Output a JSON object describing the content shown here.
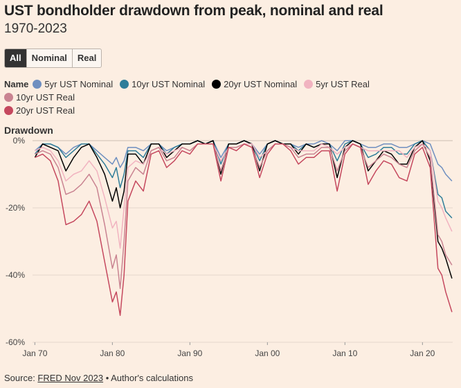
{
  "title": "UST bondholder drawdown from peak, nominal and real",
  "subtitle": "1970-2023",
  "filters": [
    {
      "label": "All",
      "active": true
    },
    {
      "label": "Nominal",
      "active": false
    },
    {
      "label": "Real",
      "active": false
    }
  ],
  "legend_title": "Name",
  "source": {
    "prefix": "Source: ",
    "link": "FRED Nov 2023",
    "suffix": " • Author's calculations"
  },
  "chart_data": {
    "type": "line",
    "ylabel": "Drawdown",
    "ylim": [
      -60,
      0
    ],
    "xlim": [
      1969.7,
      2023.9
    ],
    "y_ticks": [
      {
        "value": 0,
        "label": "0%"
      },
      {
        "value": -20,
        "label": "-20%"
      },
      {
        "value": -40,
        "label": "-40%"
      },
      {
        "value": -60,
        "label": "-60%"
      }
    ],
    "x_ticks": [
      {
        "value": 1970,
        "label": "Jan 70"
      },
      {
        "value": 1980,
        "label": "Jan 80"
      },
      {
        "value": 1990,
        "label": "Jan 90"
      },
      {
        "value": 2000,
        "label": "Jan 00"
      },
      {
        "value": 2010,
        "label": "Jan 10"
      },
      {
        "value": 2020,
        "label": "Jan 20"
      }
    ],
    "x": [
      1970,
      1971,
      1972,
      1973,
      1974,
      1975,
      1976,
      1977,
      1978,
      1979,
      1980,
      1980.5,
      1981,
      1981.5,
      1982,
      1983,
      1984,
      1985,
      1986,
      1987,
      1988,
      1989,
      1990,
      1991,
      1992,
      1993,
      1994,
      1995,
      1996,
      1997,
      1998,
      1999,
      2000,
      2001,
      2002,
      2003,
      2004,
      2005,
      2006,
      2007,
      2008,
      2009,
      2010,
      2011,
      2012,
      2013,
      2014,
      2015,
      2016,
      2017,
      2018,
      2019,
      2020,
      2021,
      2022,
      2022.5,
      2023,
      2023.8
    ],
    "series": [
      {
        "name": "5yr UST Nominal",
        "color": "#6F8FC0",
        "values": [
          -3,
          -1,
          -1,
          -2,
          -4,
          -2,
          -1,
          -1,
          -3,
          -5,
          -7,
          -5,
          -8,
          -6,
          -2,
          -2,
          -3,
          -1,
          -1,
          -3,
          -2,
          -1,
          -1,
          0,
          -1,
          0,
          -5,
          -1,
          -1,
          0,
          -1,
          -4,
          -1,
          0,
          -1,
          -1,
          -2,
          -1,
          -1,
          0,
          -1,
          -3,
          0,
          0,
          -1,
          -2,
          -2,
          -1,
          -1,
          -2,
          -2,
          -1,
          0,
          -1,
          -7,
          -8,
          -10,
          -12
        ]
      },
      {
        "name": "10yr UST Nominal",
        "color": "#2E7D99",
        "values": [
          -4,
          -1,
          -1,
          -2,
          -5,
          -3,
          -1,
          -1,
          -4,
          -7,
          -11,
          -8,
          -14,
          -10,
          -3,
          -3,
          -5,
          -1,
          -1,
          -4,
          -2,
          -1,
          -1,
          0,
          -1,
          0,
          -7,
          -1,
          -1,
          0,
          -1,
          -6,
          -1,
          0,
          -1,
          -1,
          -3,
          -1,
          -2,
          -1,
          -1,
          -6,
          -1,
          0,
          -1,
          -5,
          -4,
          -2,
          -2,
          -4,
          -4,
          -1,
          0,
          -3,
          -16,
          -17,
          -21,
          -23
        ]
      },
      {
        "name": "20yr UST Nominal",
        "color": "#000000",
        "values": [
          -5,
          -1,
          -2,
          -3,
          -9,
          -5,
          -2,
          -1,
          -5,
          -10,
          -18,
          -14,
          -20,
          -15,
          -4,
          -4,
          -7,
          -1,
          -1,
          -5,
          -3,
          -1,
          -1,
          0,
          -1,
          0,
          -10,
          -1,
          -1,
          0,
          -1,
          -9,
          -1,
          0,
          -1,
          -1,
          -4,
          -1,
          -2,
          -1,
          -1,
          -11,
          -2,
          0,
          -1,
          -9,
          -6,
          -3,
          -4,
          -7,
          -7,
          -2,
          0,
          -6,
          -30,
          -32,
          -35,
          -41
        ]
      },
      {
        "name": "5yr UST Real",
        "color": "#F1B3C0",
        "values": [
          -3,
          -2,
          -3,
          -6,
          -12,
          -10,
          -9,
          -6,
          -9,
          -17,
          -26,
          -24,
          -32,
          -20,
          -8,
          -6,
          -7,
          -3,
          -2,
          -4,
          -3,
          -2,
          -3,
          -1,
          -1,
          -1,
          -6,
          -2,
          -2,
          -1,
          -1,
          -5,
          -3,
          -1,
          -1,
          -2,
          -3,
          -3,
          -3,
          -1,
          -2,
          -4,
          -2,
          -1,
          -2,
          -3,
          -3,
          -3,
          -3,
          -3,
          -5,
          -2,
          -1,
          -3,
          -18,
          -20,
          -23,
          -27
        ]
      },
      {
        "name": "10yr UST Real",
        "color": "#C98391",
        "values": [
          -4,
          -3,
          -4,
          -8,
          -16,
          -15,
          -13,
          -10,
          -14,
          -25,
          -38,
          -34,
          -44,
          -30,
          -12,
          -8,
          -10,
          -3,
          -2,
          -6,
          -5,
          -2,
          -3,
          -1,
          -1,
          -1,
          -9,
          -2,
          -2,
          -1,
          -2,
          -8,
          -3,
          -1,
          -1,
          -2,
          -5,
          -4,
          -4,
          -2,
          -2,
          -9,
          -3,
          -1,
          -2,
          -8,
          -6,
          -4,
          -5,
          -7,
          -8,
          -3,
          -1,
          -5,
          -28,
          -30,
          -34,
          -37
        ]
      },
      {
        "name": "20yr UST Real",
        "color": "#C5485E",
        "values": [
          -5,
          -4,
          -6,
          -12,
          -25,
          -24,
          -22,
          -18,
          -24,
          -36,
          -48,
          -45,
          -52,
          -40,
          -18,
          -12,
          -15,
          -4,
          -3,
          -8,
          -6,
          -3,
          -4,
          -1,
          -1,
          -1,
          -12,
          -2,
          -3,
          -1,
          -2,
          -11,
          -4,
          -1,
          -1,
          -3,
          -7,
          -5,
          -5,
          -3,
          -3,
          -15,
          -4,
          -1,
          -2,
          -13,
          -9,
          -6,
          -7,
          -11,
          -12,
          -4,
          -2,
          -8,
          -38,
          -40,
          -45,
          -51
        ]
      }
    ]
  }
}
